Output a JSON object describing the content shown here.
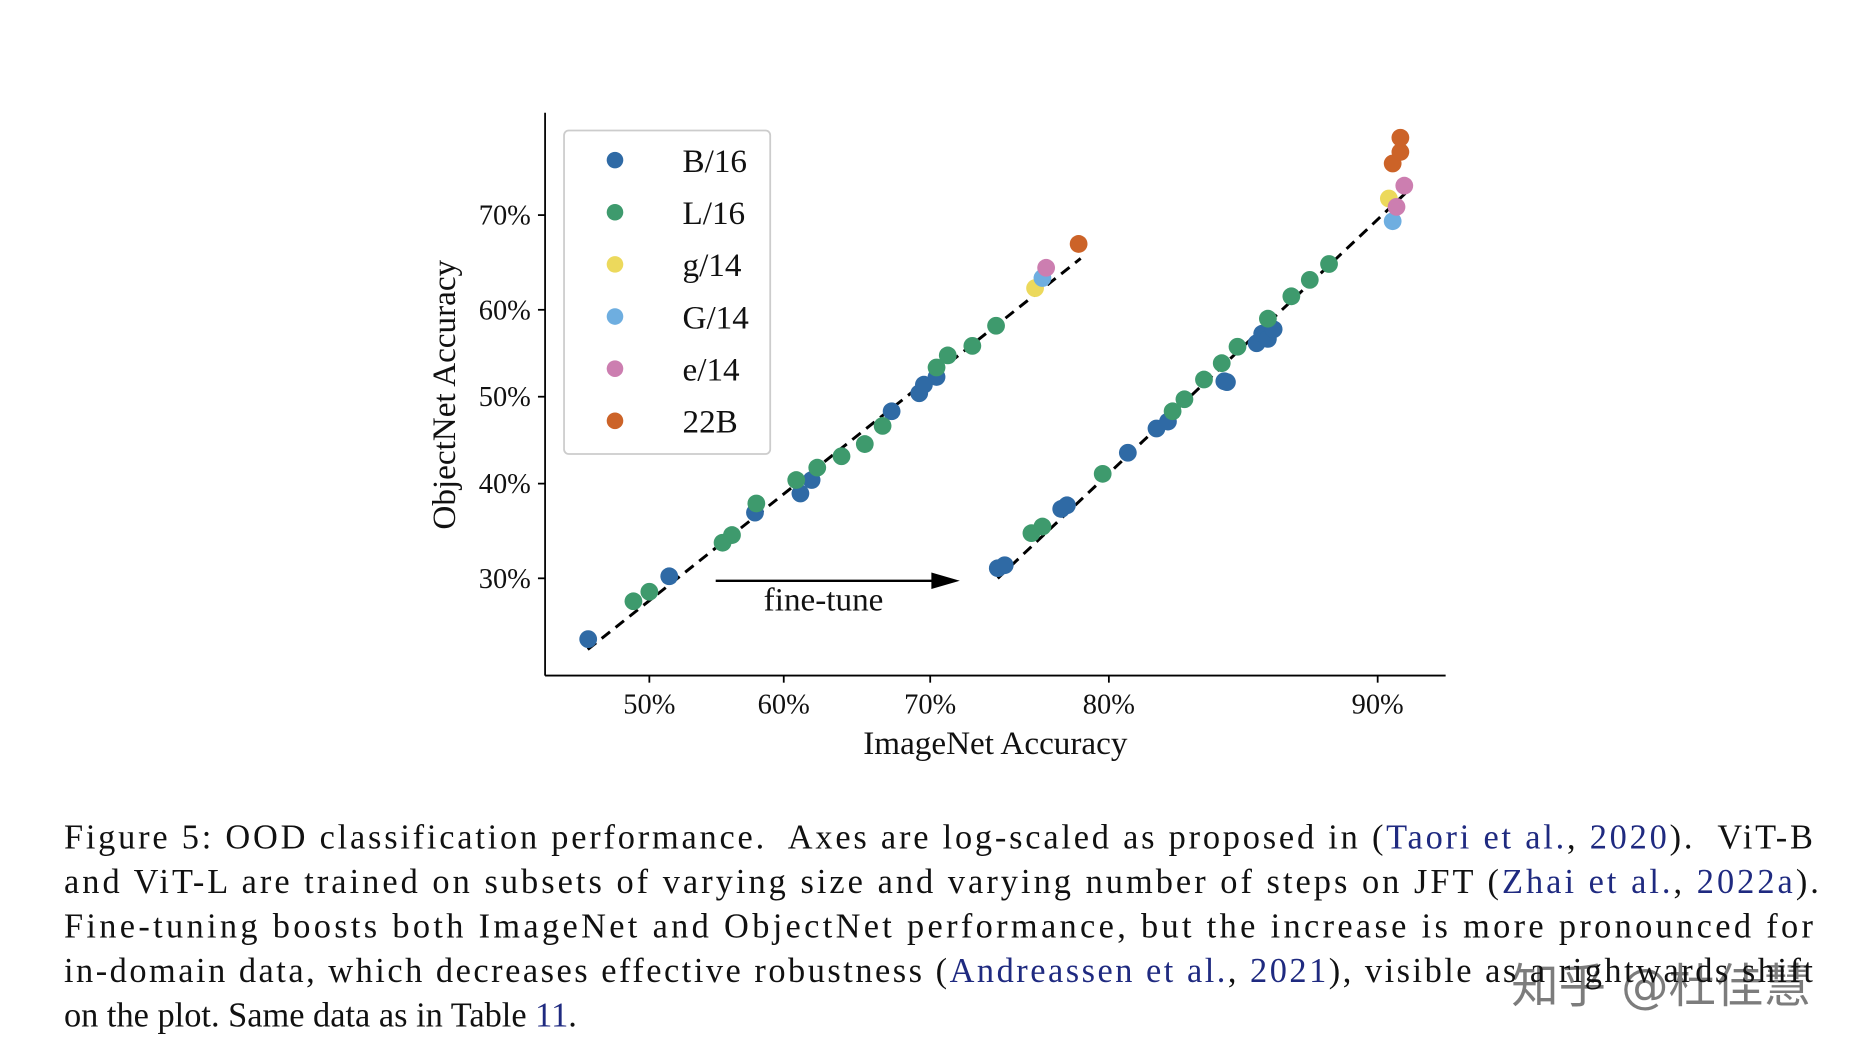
{
  "chart_data": {
    "type": "scatter",
    "xlabel": "ImageNet Accuracy",
    "ylabel": "ObjectNet Accuracy",
    "xscale": "logit",
    "yscale": "logit",
    "xlim": [
      42.2,
      91.7
    ],
    "ylim": [
      21.4,
      79.0
    ],
    "xticks": [
      {
        "value": 50,
        "label": "50%"
      },
      {
        "value": 60,
        "label": "60%"
      },
      {
        "value": 70,
        "label": "70%"
      },
      {
        "value": 80,
        "label": "80%"
      },
      {
        "value": 90,
        "label": "90%"
      }
    ],
    "yticks": [
      {
        "value": 30,
        "label": "30%"
      },
      {
        "value": 40,
        "label": "40%"
      },
      {
        "value": 50,
        "label": "50%"
      },
      {
        "value": 60,
        "label": "60%"
      },
      {
        "value": 70,
        "label": "70%"
      }
    ],
    "legend": "upper left",
    "annotation": "fine-tune",
    "series": [
      {
        "name": "B/16",
        "color": "#2f6aa5",
        "x": [
          45.4,
          51.5,
          57.9,
          61.2,
          62.0,
          67.5,
          69.3,
          69.6,
          70.4,
          74.1,
          74.5,
          77.6,
          77.9,
          80.9,
          82.2,
          82.7,
          85.0,
          85.1,
          86.2,
          86.4,
          86.6,
          86.8
        ],
        "y": [
          24.4,
          30.2,
          36.8,
          38.9,
          40.4,
          48.3,
          50.4,
          51.4,
          52.3,
          31.0,
          31.3,
          37.2,
          37.6,
          43.5,
          46.3,
          47.1,
          51.8,
          51.7,
          56.2,
          57.3,
          56.7,
          57.8
        ]
      },
      {
        "name": "L/16",
        "color": "#3e9a6d",
        "x": [
          48.8,
          50.0,
          55.5,
          56.2,
          58.0,
          60.9,
          62.4,
          64.1,
          65.7,
          66.9,
          70.4,
          71.1,
          72.6,
          74.0,
          76.0,
          76.6,
          79.7,
          82.9,
          83.4,
          84.2,
          84.9,
          85.5,
          86.6,
          87.4,
          88.0,
          88.6
        ],
        "y": [
          27.8,
          28.7,
          33.6,
          34.4,
          37.8,
          40.4,
          41.8,
          43.1,
          44.5,
          46.6,
          53.4,
          54.8,
          55.9,
          58.2,
          34.6,
          35.3,
          41.1,
          48.3,
          49.7,
          52.0,
          53.9,
          55.8,
          59.0,
          61.5,
          63.3,
          65.0
        ]
      },
      {
        "name": "g/14",
        "color": "#ecd95c",
        "x": [
          76.2,
          90.3
        ],
        "y": [
          62.4,
          71.6
        ]
      },
      {
        "name": "G/14",
        "color": "#6eaee0",
        "x": [
          76.6,
          90.4
        ],
        "y": [
          63.5,
          69.4
        ]
      },
      {
        "name": "e/14",
        "color": "#cc7eb0",
        "x": [
          76.8,
          90.5,
          90.7
        ],
        "y": [
          64.6,
          70.8,
          72.8
        ]
      },
      {
        "name": "22B",
        "color": "#cc6328",
        "x": [
          78.5,
          90.4,
          90.6,
          90.6
        ],
        "y": [
          67.1,
          74.8,
          75.8,
          77.0
        ]
      }
    ]
  },
  "caption": {
    "lines": [
      [
        {
          "text": "Figure 5: OOD classification performance.  Axes are log-scaled as proposed in ("
        },
        {
          "text": "Taori et al.",
          "cite": true
        },
        {
          "text": ", "
        },
        {
          "text": "2020",
          "cite": true
        },
        {
          "text": ").  ViT-B"
        }
      ],
      [
        {
          "text": "and ViT-L are trained on subsets of varying size and varying number of steps on JFT ("
        },
        {
          "text": "Zhai et al.",
          "cite": true
        },
        {
          "text": ", "
        },
        {
          "text": "2022a",
          "cite": true
        },
        {
          "text": ")."
        }
      ],
      [
        {
          "text": "Fine-tuning boosts both ImageNet and ObjectNet performance, but the increase is more pronounced for"
        }
      ],
      [
        {
          "text": "in-domain data, which decreases effective robustness ("
        },
        {
          "text": "Andreassen et al.",
          "cite": true
        },
        {
          "text": ", "
        },
        {
          "text": "2021",
          "cite": true
        },
        {
          "text": "), visible as a rightwards shift"
        }
      ],
      [
        {
          "text": "on the plot. Same data as in Table "
        },
        {
          "text": "11",
          "cite": true
        },
        {
          "text": "."
        }
      ]
    ]
  },
  "watermark": "知乎 @杜佳慧"
}
